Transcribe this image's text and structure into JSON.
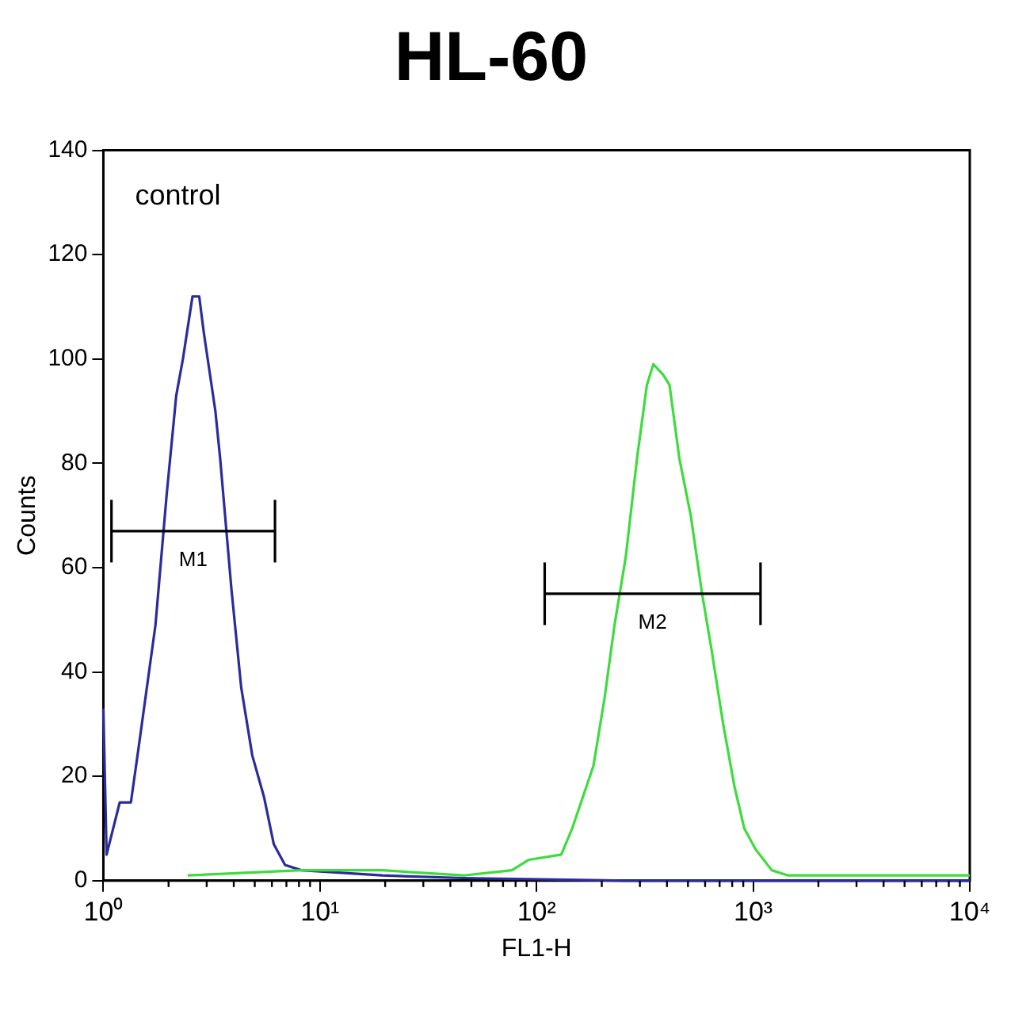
{
  "chart_data": {
    "type": "line",
    "title": "HL-60",
    "xlabel": "FL1-H",
    "ylabel": "Counts",
    "log": "x",
    "marker": "none",
    "xlim": [
      1,
      10000
    ],
    "xticks": [
      {
        "value": 1,
        "label": "10⁰"
      },
      {
        "value": 10,
        "label": "10¹"
      },
      {
        "value": 100,
        "label": "10²"
      },
      {
        "value": 1000,
        "label": "10³"
      },
      {
        "value": 10000,
        "label": "10⁴"
      }
    ],
    "ylim": [
      0,
      140
    ],
    "yticks": [
      0,
      20,
      40,
      60,
      80,
      100,
      120,
      140
    ],
    "annotations": [
      "control"
    ],
    "series": [
      {
        "color": "#2b2b9c",
        "x": [
          1.0,
          1.035,
          1.19,
          1.34,
          1.46,
          1.74,
          1.96,
          2.17,
          2.33,
          2.58,
          2.77,
          2.91,
          3.29,
          3.46,
          3.9,
          4.33,
          4.87,
          5.52,
          6.12,
          6.9,
          8.2,
          19.4,
          46,
          259,
          10000
        ],
        "values": [
          33,
          5,
          15,
          15,
          26,
          49,
          74,
          93,
          100,
          112,
          112,
          105,
          90,
          81,
          56,
          37,
          24,
          16,
          7,
          3,
          2,
          1,
          0.5,
          0,
          0
        ]
      },
      {
        "color": "#3ddc3d",
        "x": [
          2.45,
          8.2,
          19.4,
          46,
          77,
          92,
          130,
          146,
          183,
          206,
          229,
          258,
          291,
          323,
          346,
          384,
          411,
          456,
          515,
          581,
          644,
          727,
          820,
          910,
          1026,
          1219,
          1449,
          10000
        ],
        "values": [
          1,
          2,
          2,
          1,
          2,
          4,
          5,
          10,
          22,
          35,
          49,
          62,
          81,
          95,
          99,
          97,
          95,
          81,
          70,
          55,
          44,
          30,
          18,
          10,
          6,
          2,
          1,
          1
        ]
      },
      {
        "name": "M1",
        "color": "#000000",
        "x": [
          1.09,
          6.2
        ],
        "values": [
          67,
          67
        ],
        "errors": [
          6,
          6
        ]
      },
      {
        "name": "M2",
        "color": "#000000",
        "x": [
          109,
          1081
        ],
        "values": [
          55,
          55
        ],
        "errors": [
          6,
          6
        ]
      }
    ]
  }
}
